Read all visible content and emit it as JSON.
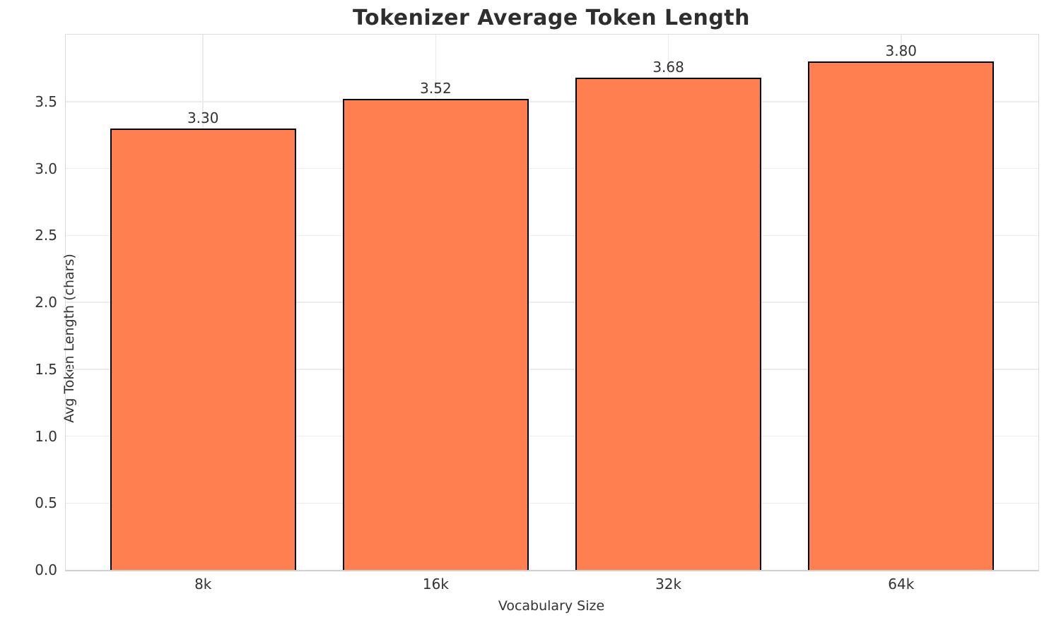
{
  "chart_data": {
    "type": "bar",
    "title": "Tokenizer Average Token Length",
    "xlabel": "Vocabulary Size",
    "ylabel": "Avg Token Length (chars)",
    "categories": [
      "8k",
      "16k",
      "32k",
      "64k"
    ],
    "values": [
      3.3,
      3.52,
      3.68,
      3.8
    ],
    "bar_labels": [
      "3.30",
      "3.52",
      "3.68",
      "3.80"
    ],
    "ytick_labels": [
      "0.0",
      "0.5",
      "1.0",
      "1.5",
      "2.0",
      "2.5",
      "3.0",
      "3.5"
    ],
    "yticks": [
      0.0,
      0.5,
      1.0,
      1.5,
      2.0,
      2.5,
      3.0,
      3.5
    ],
    "ylim": [
      0,
      4.0
    ],
    "grid": true,
    "legend": "none",
    "bar_color": "#FF7F50",
    "bar_edge_color": "#000000",
    "text_color": "#333333",
    "grid_color": "#ebebeb"
  }
}
